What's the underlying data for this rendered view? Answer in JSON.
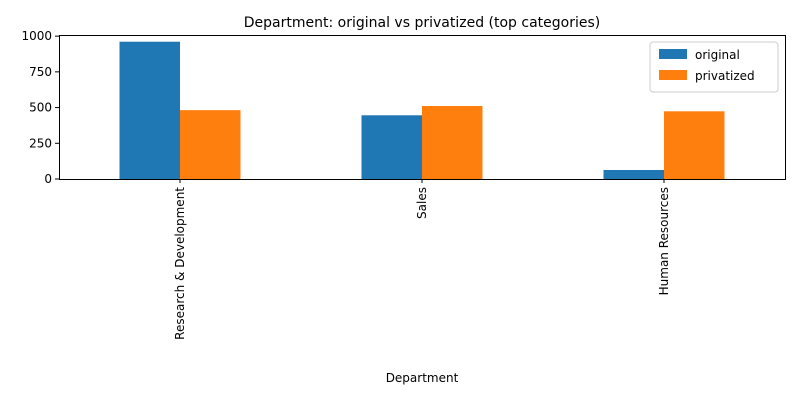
{
  "chart_data": {
    "type": "bar",
    "title": "Department: original vs privatized (top categories)",
    "xlabel": "Department",
    "ylabel": "",
    "categories": [
      "Research & Development",
      "Sales",
      "Human Resources"
    ],
    "series": [
      {
        "name": "original",
        "color": "#1f77b4",
        "values": [
          961,
          446,
          63
        ]
      },
      {
        "name": "privatized",
        "color": "#ff7f0e",
        "values": [
          482,
          511,
          474
        ]
      }
    ],
    "ylim": [
      0,
      1008
    ],
    "yticks": [
      0,
      250,
      500,
      750,
      1000
    ],
    "grid": false,
    "legend_position": "top-right"
  }
}
